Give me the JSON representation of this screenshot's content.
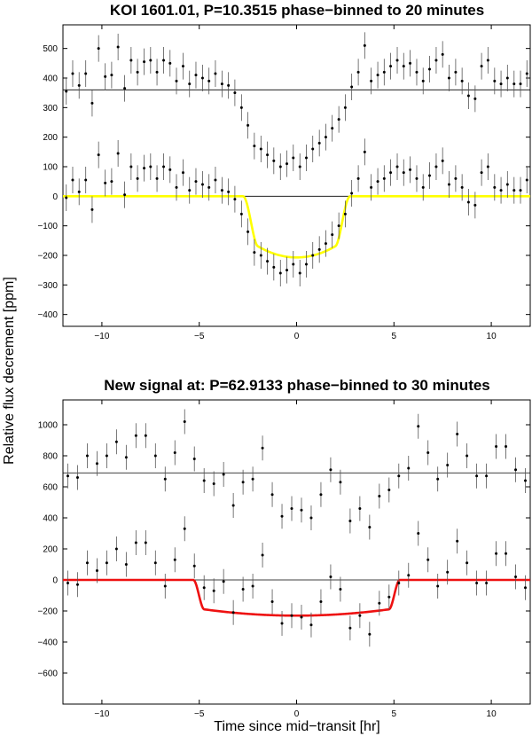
{
  "figure": {
    "ylabel": "Relative flux decrement [ppm]",
    "xlabel": "Time since mid−transit [hr]"
  },
  "chart_data": [
    {
      "type": "scatter",
      "title": "KOI 1601.01, P=10.3515 phase−binned to 20 minutes",
      "xlim": [
        -12,
        12
      ],
      "ylim": [
        -440,
        580
      ],
      "x_ticks": [
        -10,
        -5,
        0,
        5,
        10
      ],
      "x_tick_labels": [
        "−10",
        "−5",
        "0",
        "5",
        "10"
      ],
      "y_ticks": [
        -400,
        -300,
        -200,
        -100,
        0,
        100,
        200,
        300,
        400,
        500
      ],
      "y_tick_labels": [
        "−400",
        "−300",
        "−200",
        "−100",
        "0",
        "100",
        "200",
        "300",
        "400",
        "500"
      ],
      "reference_lines": [
        360,
        0
      ],
      "offset_series_shift": 360,
      "x": [
        -11.83,
        -11.5,
        -11.17,
        -10.83,
        -10.5,
        -10.17,
        -9.83,
        -9.5,
        -9.17,
        -8.83,
        -8.5,
        -8.17,
        -7.83,
        -7.5,
        -7.17,
        -6.83,
        -6.5,
        -6.17,
        -5.83,
        -5.5,
        -5.17,
        -4.83,
        -4.5,
        -4.17,
        -3.83,
        -3.5,
        -3.17,
        -2.83,
        -2.5,
        -2.17,
        -1.83,
        -1.5,
        -1.17,
        -0.83,
        -0.5,
        -0.17,
        0.17,
        0.5,
        0.83,
        1.17,
        1.5,
        1.83,
        2.17,
        2.5,
        2.83,
        3.17,
        3.5,
        3.83,
        4.17,
        4.5,
        4.83,
        5.17,
        5.5,
        5.83,
        6.17,
        6.5,
        6.83,
        7.17,
        7.5,
        7.83,
        8.17,
        8.5,
        8.83,
        9.17,
        9.5,
        9.83,
        10.17,
        10.5,
        10.83,
        11.17,
        11.5,
        11.83
      ],
      "y": [
        -5,
        55,
        15,
        55,
        -45,
        140,
        45,
        50,
        145,
        5,
        100,
        60,
        95,
        100,
        60,
        100,
        90,
        30,
        80,
        20,
        50,
        40,
        30,
        55,
        20,
        15,
        -10,
        -60,
        -120,
        -190,
        -200,
        -220,
        -240,
        -260,
        -250,
        -230,
        -260,
        -230,
        -200,
        -180,
        -160,
        -130,
        -100,
        -60,
        10,
        60,
        150,
        30,
        50,
        60,
        80,
        100,
        80,
        90,
        60,
        30,
        70,
        100,
        120,
        40,
        60,
        30,
        -20,
        -30,
        80,
        100,
        30,
        20,
        40,
        20,
        20,
        55
      ],
      "error": 45,
      "model": {
        "name": "transit model",
        "color": "#ffff00",
        "depth": 207,
        "half_duration": 2.75,
        "ingress": 0.75,
        "curvature": 0.35
      }
    },
    {
      "type": "scatter",
      "title": "New signal at: P=62.9133 phase−binned to 30 minutes",
      "xlim": [
        -12,
        12
      ],
      "ylim": [
        -800,
        1160
      ],
      "x_ticks": [
        -10,
        -5,
        0,
        5,
        10
      ],
      "x_tick_labels": [
        "−10",
        "−5",
        "0",
        "5",
        "10"
      ],
      "y_ticks": [
        -600,
        -400,
        -200,
        0,
        200,
        400,
        600,
        800,
        1000
      ],
      "y_tick_labels": [
        "−600",
        "−400",
        "−200",
        "0",
        "200",
        "400",
        "600",
        "800",
        "1000"
      ],
      "reference_lines": [
        690,
        0
      ],
      "offset_series_shift": 690,
      "x": [
        -11.75,
        -11.25,
        -10.75,
        -10.25,
        -9.75,
        -9.25,
        -8.75,
        -8.25,
        -7.75,
        -7.25,
        -6.75,
        -6.25,
        -5.75,
        -5.25,
        -4.75,
        -4.25,
        -3.75,
        -3.25,
        -2.75,
        -2.25,
        -1.75,
        -1.25,
        -0.75,
        -0.25,
        0.25,
        0.75,
        1.25,
        1.75,
        2.25,
        2.75,
        3.25,
        3.75,
        4.25,
        4.75,
        5.25,
        5.75,
        6.25,
        6.75,
        7.25,
        7.75,
        8.25,
        8.75,
        9.25,
        9.75,
        10.25,
        10.75,
        11.25,
        11.75
      ],
      "y": [
        -20,
        -30,
        110,
        60,
        110,
        200,
        100,
        240,
        240,
        110,
        -40,
        130,
        330,
        90,
        -50,
        -70,
        -10,
        -210,
        -60,
        -40,
        160,
        -140,
        -280,
        -230,
        -240,
        -290,
        -140,
        20,
        -60,
        -310,
        -230,
        -350,
        -150,
        -110,
        -20,
        30,
        300,
        130,
        -40,
        50,
        250,
        110,
        -20,
        -20,
        170,
        170,
        20,
        -50
      ],
      "error": 80,
      "model": {
        "name": "transit model",
        "color": "#ee1111",
        "depth": 230,
        "half_duration": 5.3,
        "ingress": 0.55,
        "curvature": 0.22
      }
    }
  ]
}
